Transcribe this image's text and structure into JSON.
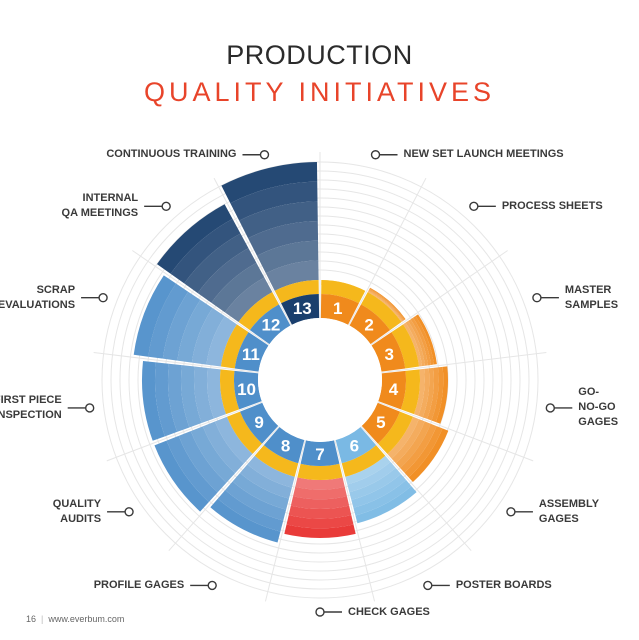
{
  "title": {
    "line1": "PRODUCTION",
    "line2": "QUALITY INITIATIVES"
  },
  "initiatives": [
    {
      "num": "1",
      "label": "NEW SET LAUNCH MEETINGS"
    },
    {
      "num": "2",
      "label": "PROCESS SHEETS"
    },
    {
      "num": "3",
      "label": "MASTER\nSAMPLES"
    },
    {
      "num": "4",
      "label": "GO-\nNO-GO\nGAGES"
    },
    {
      "num": "5",
      "label": "ASSEMBLY\nGAGES"
    },
    {
      "num": "6",
      "label": "POSTER BOARDS"
    },
    {
      "num": "7",
      "label": "CHECK GAGES"
    },
    {
      "num": "8",
      "label": "PROFILE GAGES"
    },
    {
      "num": "9",
      "label": "QUALITY\nAUDITS"
    },
    {
      "num": "10",
      "label": "FIRST PIECE\nINSPECTION"
    },
    {
      "num": "11",
      "label": "SCRAP\nEVALUATIONS"
    },
    {
      "num": "12",
      "label": "INTERNAL\nQA MEETINGS"
    },
    {
      "num": "13",
      "label": "CONTINUOUS TRAINING"
    }
  ],
  "colors": {
    "yellow": "#f5b81c",
    "orange": "#f08a1c",
    "red": "#e8312f",
    "light_blue": "#7ab9e4",
    "blue": "#4f8fca",
    "dark_blue": "#1a3f6d",
    "accent": "#e8442a"
  },
  "footer": {
    "page": "16",
    "url": "www.everbum.com"
  }
}
